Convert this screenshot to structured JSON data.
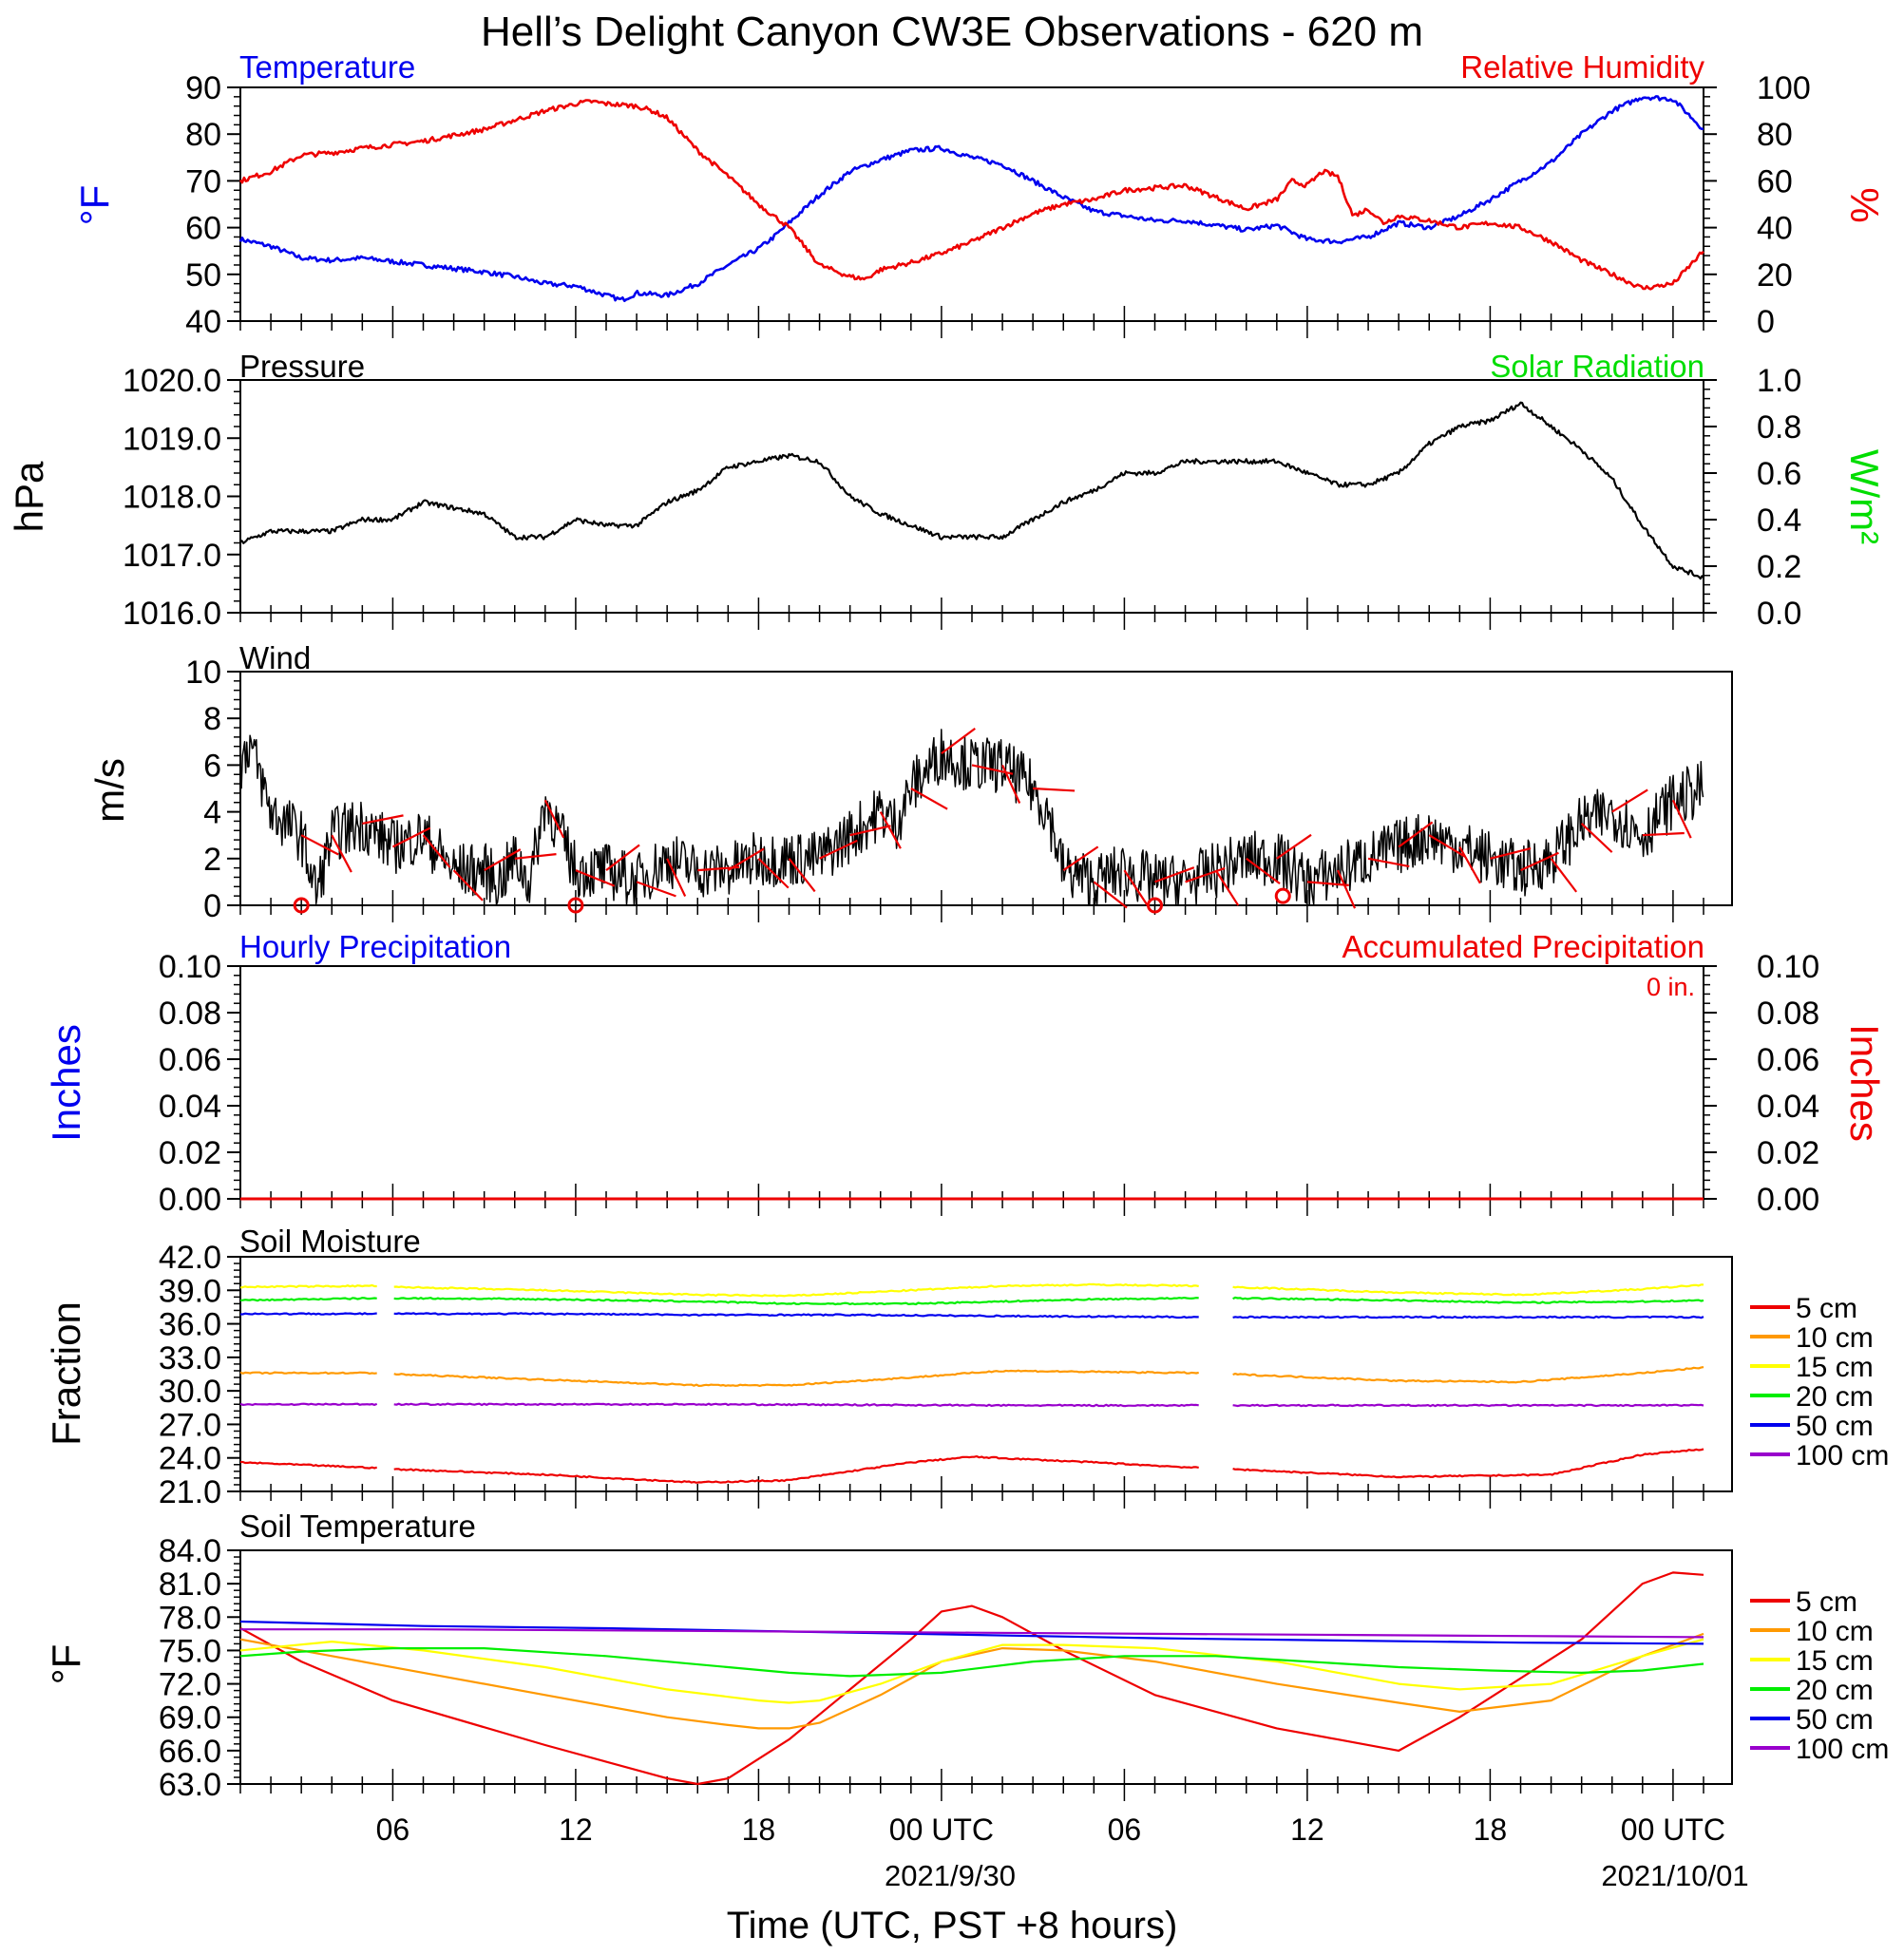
{
  "title": "Hell’s Delight Canyon CW3E Observations - 620 m",
  "x_axis": {
    "label": "Time (UTC, PST +8 hours)",
    "ticks": [
      "06",
      "12",
      "18",
      "00 UTC",
      "06",
      "12",
      "18",
      "00 UTC"
    ],
    "dates": [
      "2021/9/30",
      "2021/10/01"
    ]
  },
  "panels": {
    "temp_rh": {
      "left_title": "Temperature",
      "right_title": "Relative Humidity",
      "left_unit": "°F",
      "right_unit": "%",
      "left_ticks": [
        "40",
        "50",
        "60",
        "70",
        "80",
        "90"
      ],
      "right_ticks": [
        "0",
        "20",
        "40",
        "60",
        "80",
        "100"
      ]
    },
    "pressure": {
      "left_title": "Pressure",
      "right_title": "Solar Radiation",
      "left_unit": "hPa",
      "right_unit": "W/m²",
      "left_ticks": [
        "1016.0",
        "1017.0",
        "1018.0",
        "1019.0",
        "1020.0"
      ],
      "right_ticks": [
        "0.0",
        "0.2",
        "0.4",
        "0.6",
        "0.8",
        "1.0"
      ]
    },
    "wind": {
      "left_title": "Wind",
      "left_unit": "m/s",
      "left_ticks": [
        "0",
        "2",
        "4",
        "6",
        "8",
        "10"
      ]
    },
    "precip": {
      "left_title": "Hourly Precipitation",
      "right_title": "Accumulated Precipitation",
      "total": "0 in.",
      "left_unit": "Inches",
      "right_unit": "Inches",
      "left_ticks": [
        "0.00",
        "0.02",
        "0.04",
        "0.06",
        "0.08",
        "0.10"
      ],
      "right_ticks": [
        "0.00",
        "0.02",
        "0.04",
        "0.06",
        "0.08",
        "0.10"
      ]
    },
    "soil_moisture": {
      "left_title": "Soil Moisture",
      "left_unit": "Fraction",
      "left_ticks": [
        "21.0",
        "24.0",
        "27.0",
        "30.0",
        "33.0",
        "36.0",
        "39.0",
        "42.0"
      ]
    },
    "soil_temp": {
      "left_title": "Soil Temperature",
      "left_unit": "°F",
      "left_ticks": [
        "63.0",
        "66.0",
        "69.0",
        "72.0",
        "75.0",
        "78.0",
        "81.0",
        "84.0"
      ]
    }
  },
  "legend": [
    "5 cm",
    "10 cm",
    "15 cm",
    "20 cm",
    "50 cm",
    "100 cm"
  ],
  "colors": {
    "temperature": "#0000ee",
    "humidity": "#ee0000",
    "pressure": "#000000",
    "solar": "#00dd00",
    "wind": "#000000",
    "barbs": "#ee0000",
    "5 cm": "#ee0000",
    "10 cm": "#ff9900",
    "15 cm": "#ffff00",
    "20 cm": "#00ee00",
    "50 cm": "#0000ee",
    "100 cm": "#9900cc"
  },
  "chart_data": [
    {
      "type": "line",
      "name_hint": "temperature-humidity",
      "x_unit": "hours after 2021-09-29 01 UTC",
      "series": [
        {
          "name": "Temperature",
          "axis": "left",
          "x": [
            0,
            1,
            2,
            3,
            4,
            6,
            8,
            9,
            10,
            11,
            12,
            12.5,
            13,
            14,
            15,
            16,
            17,
            17.5,
            18,
            18.5,
            19,
            20,
            21,
            22,
            23,
            24,
            25,
            26,
            27,
            28,
            29,
            30,
            31,
            32,
            33,
            34,
            35,
            36,
            37,
            38,
            39,
            40,
            41,
            42,
            43,
            44,
            45,
            46,
            47,
            48
          ],
          "values": [
            57.5,
            56,
            53.5,
            53,
            53.5,
            52,
            50.5,
            49.5,
            48,
            47.5,
            45.5,
            44.5,
            46,
            45.5,
            48,
            52,
            55.5,
            58,
            61,
            64,
            67,
            72,
            74.5,
            76.5,
            77,
            75,
            73.5,
            70,
            66.5,
            63.5,
            62.5,
            61.5,
            61.5,
            60.5,
            59.5,
            60.5,
            57.5,
            57,
            58,
            61,
            60,
            62.5,
            66,
            70,
            74,
            80,
            85,
            88,
            87.5,
            81
          ]
        },
        {
          "name": "Relative Humidity",
          "axis": "right",
          "x": [
            0,
            1,
            2,
            3,
            4,
            6,
            8,
            9,
            10,
            11,
            11.5,
            12,
            13,
            13.5,
            14,
            15,
            16,
            17,
            18,
            19,
            20,
            20.5,
            21,
            22,
            23,
            24,
            25,
            26,
            27,
            28,
            29,
            30,
            31,
            32,
            33,
            34,
            34.5,
            35,
            35.5,
            36,
            36.5,
            37,
            37.5,
            38,
            39,
            40,
            41,
            42,
            43,
            44,
            45,
            46,
            47,
            48
          ],
          "values": [
            60,
            64,
            71,
            72,
            74,
            77,
            82,
            86,
            90,
            93,
            94,
            93,
            92,
            90,
            87,
            73,
            62,
            50,
            40,
            24,
            19,
            18,
            22,
            25,
            29,
            34,
            40,
            46,
            50,
            52,
            56,
            57,
            58,
            53,
            48,
            52,
            60,
            58,
            64,
            62,
            45,
            48,
            42,
            45,
            43,
            40,
            42,
            40,
            34,
            26,
            20,
            14,
            16,
            30
          ]
        }
      ],
      "left_ylim": [
        40,
        90
      ],
      "right_ylim": [
        0,
        100
      ]
    },
    {
      "type": "line",
      "name_hint": "pressure",
      "series": [
        {
          "name": "Pressure",
          "axis": "left",
          "x": [
            0,
            1,
            2,
            3,
            4,
            5,
            6,
            7,
            8,
            9,
            10,
            11,
            12,
            13,
            14,
            15,
            16,
            17,
            18,
            19,
            20,
            21,
            22,
            23,
            24,
            25,
            26,
            27,
            28,
            29,
            30,
            31,
            32,
            33,
            34,
            35,
            36,
            37,
            38,
            39,
            40,
            41,
            42,
            43,
            44,
            45,
            46,
            47,
            48
          ],
          "values": [
            1017.2,
            1017.4,
            1017.4,
            1017.4,
            1017.6,
            1017.6,
            1017.9,
            1017.8,
            1017.7,
            1017.3,
            1017.3,
            1017.6,
            1017.5,
            1017.5,
            1017.9,
            1018.1,
            1018.5,
            1018.6,
            1018.7,
            1018.6,
            1018.0,
            1017.7,
            1017.5,
            1017.3,
            1017.3,
            1017.3,
            1017.6,
            1017.9,
            1018.1,
            1018.4,
            1018.4,
            1018.6,
            1018.6,
            1018.6,
            1018.6,
            1018.4,
            1018.2,
            1018.2,
            1018.4,
            1018.9,
            1019.2,
            1019.3,
            1019.6,
            1019.2,
            1018.8,
            1018.3,
            1017.5,
            1016.8,
            1016.6
          ]
        }
      ],
      "left_ylim": [
        1016,
        1020
      ],
      "right_ylim": [
        0,
        1
      ]
    },
    {
      "type": "line",
      "name_hint": "wind",
      "series": [
        {
          "name": "Wind speed",
          "axis": "left",
          "x": [
            0,
            0.3,
            1,
            2,
            2.5,
            3,
            4,
            5,
            6,
            7,
            8,
            8.5,
            9,
            9.5,
            10,
            11,
            12,
            13,
            14,
            15,
            16,
            17,
            18,
            19,
            20,
            21,
            21.5,
            22,
            23,
            24,
            25,
            26,
            26.5,
            27,
            28,
            29,
            30,
            31,
            32,
            33,
            34,
            35,
            36,
            37,
            38,
            39,
            40,
            41,
            42,
            43,
            44,
            45,
            46,
            47,
            48
          ],
          "values": [
            6,
            7,
            4,
            3,
            0.5,
            3,
            3.5,
            2.5,
            3,
            1.5,
            1.5,
            1,
            2,
            1,
            4.5,
            1.5,
            1.5,
            1,
            2,
            1.5,
            1.5,
            2,
            2,
            2,
            3,
            4,
            3.5,
            5,
            6.5,
            6,
            6,
            5,
            4,
            1.5,
            1,
            1.5,
            1,
            1,
            1.5,
            2,
            2,
            1,
            1.5,
            2,
            2.5,
            3,
            2.5,
            2,
            1.5,
            2,
            3.5,
            4,
            3,
            4.5,
            5
          ]
        }
      ],
      "calm_markers_x": [
        2,
        11,
        30,
        34.2
      ],
      "left_ylim": [
        0,
        10
      ]
    },
    {
      "type": "line",
      "name_hint": "precipitation",
      "series": [
        {
          "name": "Hourly Precipitation",
          "axis": "left",
          "x": [
            0,
            48
          ],
          "values": [
            0,
            0
          ]
        },
        {
          "name": "Accumulated Precipitation",
          "axis": "right",
          "x": [
            0,
            48
          ],
          "values": [
            0,
            0
          ]
        }
      ],
      "left_ylim": [
        0,
        0.1
      ],
      "right_ylim": [
        0,
        0.1
      ]
    },
    {
      "type": "line",
      "name_hint": "soil-moisture",
      "gaps_hours": [
        [
          4.5,
          5
        ],
        [
          31.5,
          32.5
        ]
      ],
      "series": [
        {
          "name": "5 cm",
          "x": [
            0,
            4.5,
            5,
            10,
            15,
            18,
            22,
            24,
            28,
            31.5,
            32.5,
            38,
            43,
            46,
            48
          ],
          "values": [
            23.6,
            23.1,
            23,
            22.5,
            21.8,
            22.0,
            23.6,
            24.1,
            23.6,
            23.1,
            23.0,
            22.3,
            22.5,
            24.3,
            24.8
          ]
        },
        {
          "name": "10 cm",
          "x": [
            0,
            4.5,
            5,
            10,
            15,
            18,
            22,
            25,
            28,
            31.5,
            32.5,
            38,
            42,
            46,
            48
          ],
          "values": [
            31.6,
            31.6,
            31.5,
            31.0,
            30.5,
            30.5,
            31.2,
            31.8,
            31.7,
            31.6,
            31.5,
            30.9,
            30.8,
            31.6,
            32.1
          ]
        },
        {
          "name": "15 cm",
          "x": [
            0,
            4.5,
            5,
            10,
            15,
            18,
            22,
            25,
            28,
            31.5,
            32.5,
            38,
            42,
            46,
            48
          ],
          "values": [
            39.3,
            39.4,
            39.3,
            39.0,
            38.6,
            38.5,
            39.0,
            39.4,
            39.5,
            39.4,
            39.3,
            38.8,
            38.6,
            39.1,
            39.5
          ]
        },
        {
          "name": "20 cm",
          "x": [
            0,
            4.5,
            5,
            10,
            15,
            18,
            22,
            25,
            28,
            31.5,
            32.5,
            38,
            42,
            46,
            48
          ],
          "values": [
            38.1,
            38.3,
            38.3,
            38.2,
            38.0,
            37.8,
            37.8,
            38.0,
            38.2,
            38.3,
            38.3,
            38.1,
            37.9,
            38.0,
            38.1
          ]
        },
        {
          "name": "50 cm",
          "x": [
            0,
            4.5,
            5,
            10,
            15,
            20,
            25,
            31.5,
            32.5,
            40,
            48
          ],
          "values": [
            36.9,
            36.9,
            36.9,
            36.9,
            36.8,
            36.8,
            36.7,
            36.6,
            36.6,
            36.6,
            36.6
          ]
        },
        {
          "name": "100 cm",
          "x": [
            0,
            4.5,
            5,
            15,
            25,
            31.5,
            32.5,
            40,
            48
          ],
          "values": [
            28.8,
            28.8,
            28.8,
            28.8,
            28.7,
            28.7,
            28.7,
            28.7,
            28.7
          ]
        }
      ],
      "left_ylim": [
        21,
        42
      ]
    },
    {
      "type": "line",
      "name_hint": "soil-temperature",
      "series": [
        {
          "name": "5 cm",
          "x": [
            0,
            2,
            5,
            10,
            14,
            15,
            16,
            18,
            20,
            22,
            23,
            24,
            25,
            27,
            30,
            34,
            36,
            38,
            40,
            44,
            46,
            47,
            48
          ],
          "values": [
            77,
            74,
            70.5,
            66.5,
            63.5,
            63,
            63.5,
            67,
            71.5,
            76,
            78.5,
            79,
            78,
            75,
            71,
            68,
            67,
            66,
            69,
            76,
            81,
            82,
            81.8
          ]
        },
        {
          "name": "10 cm",
          "x": [
            0,
            3,
            6,
            10,
            14,
            16,
            17,
            18,
            19,
            21,
            23,
            25,
            27,
            30,
            34,
            38,
            40,
            43,
            46,
            48
          ],
          "values": [
            76,
            74.5,
            73,
            71,
            69,
            68.3,
            68,
            68,
            68.5,
            71,
            74,
            75.2,
            75,
            74,
            72,
            70.3,
            69.5,
            70.5,
            74.5,
            76.5
          ]
        },
        {
          "name": "15 cm",
          "x": [
            0,
            3,
            6,
            10,
            14,
            17,
            18,
            19,
            21,
            23,
            25,
            27,
            30,
            34,
            38,
            40,
            43,
            46,
            48
          ],
          "values": [
            75,
            75.8,
            75,
            73.5,
            71.5,
            70.5,
            70.3,
            70.5,
            72,
            74,
            75.5,
            75.5,
            75.2,
            74,
            72,
            71.5,
            72,
            74.5,
            76
          ]
        },
        {
          "name": "20 cm",
          "x": [
            0,
            2,
            5,
            8,
            12,
            16,
            18,
            20,
            23,
            26,
            29,
            32,
            35,
            38,
            41,
            44,
            46,
            48
          ],
          "values": [
            74.5,
            74.9,
            75.2,
            75.2,
            74.5,
            73.5,
            73,
            72.7,
            73.0,
            74.0,
            74.5,
            74.5,
            74.0,
            73.5,
            73.2,
            73.0,
            73.2,
            73.8
          ]
        },
        {
          "name": "50 cm",
          "x": [
            0,
            6,
            12,
            18,
            24,
            30,
            36,
            42,
            48
          ],
          "values": [
            77.6,
            77.2,
            77.0,
            76.7,
            76.4,
            76.1,
            75.9,
            75.7,
            75.6
          ]
        },
        {
          "name": "100 cm",
          "x": [
            0,
            6,
            12,
            18,
            24,
            30,
            36,
            42,
            48
          ],
          "values": [
            76.9,
            76.9,
            76.8,
            76.7,
            76.6,
            76.5,
            76.4,
            76.3,
            76.2
          ]
        }
      ],
      "left_ylim": [
        63,
        84
      ]
    }
  ]
}
